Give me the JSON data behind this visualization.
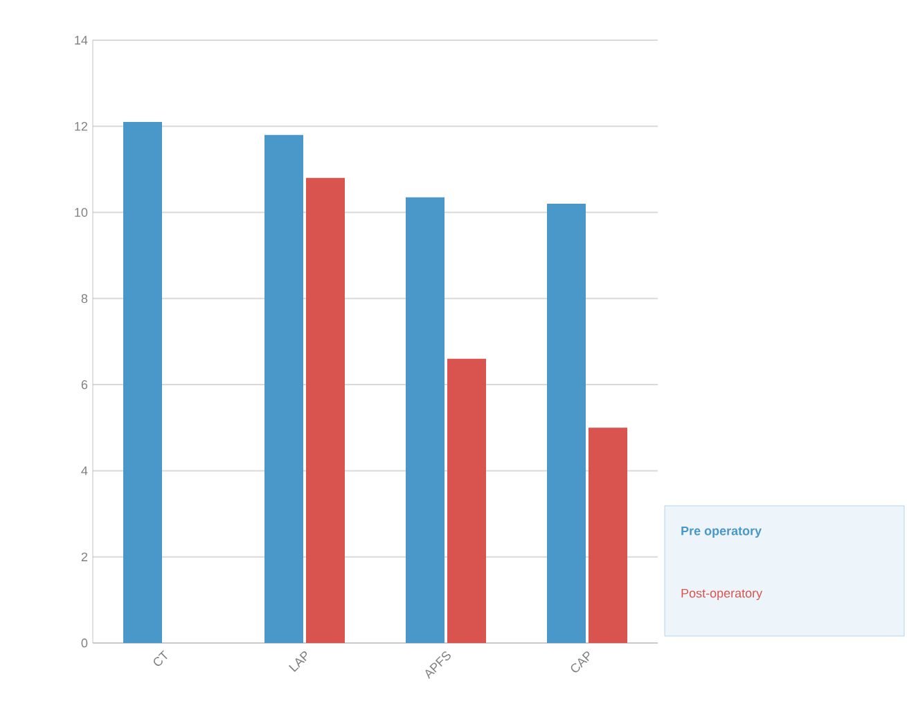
{
  "chart_data": {
    "type": "bar",
    "categories": [
      "CT",
      "LAP",
      "APFS",
      "CAP"
    ],
    "series": [
      {
        "name": "Pre operatory",
        "color": "#4a98c9",
        "values": [
          12.1,
          11.8,
          10.35,
          10.2
        ]
      },
      {
        "name": "Post-operatory",
        "color": "#d9534f",
        "values": [
          null,
          10.8,
          6.6,
          5.0
        ]
      }
    ],
    "ylim": [
      0,
      14
    ],
    "yticks": [
      0,
      2,
      4,
      6,
      8,
      10,
      12,
      14
    ],
    "grid": "y",
    "legend": "bottom right"
  }
}
